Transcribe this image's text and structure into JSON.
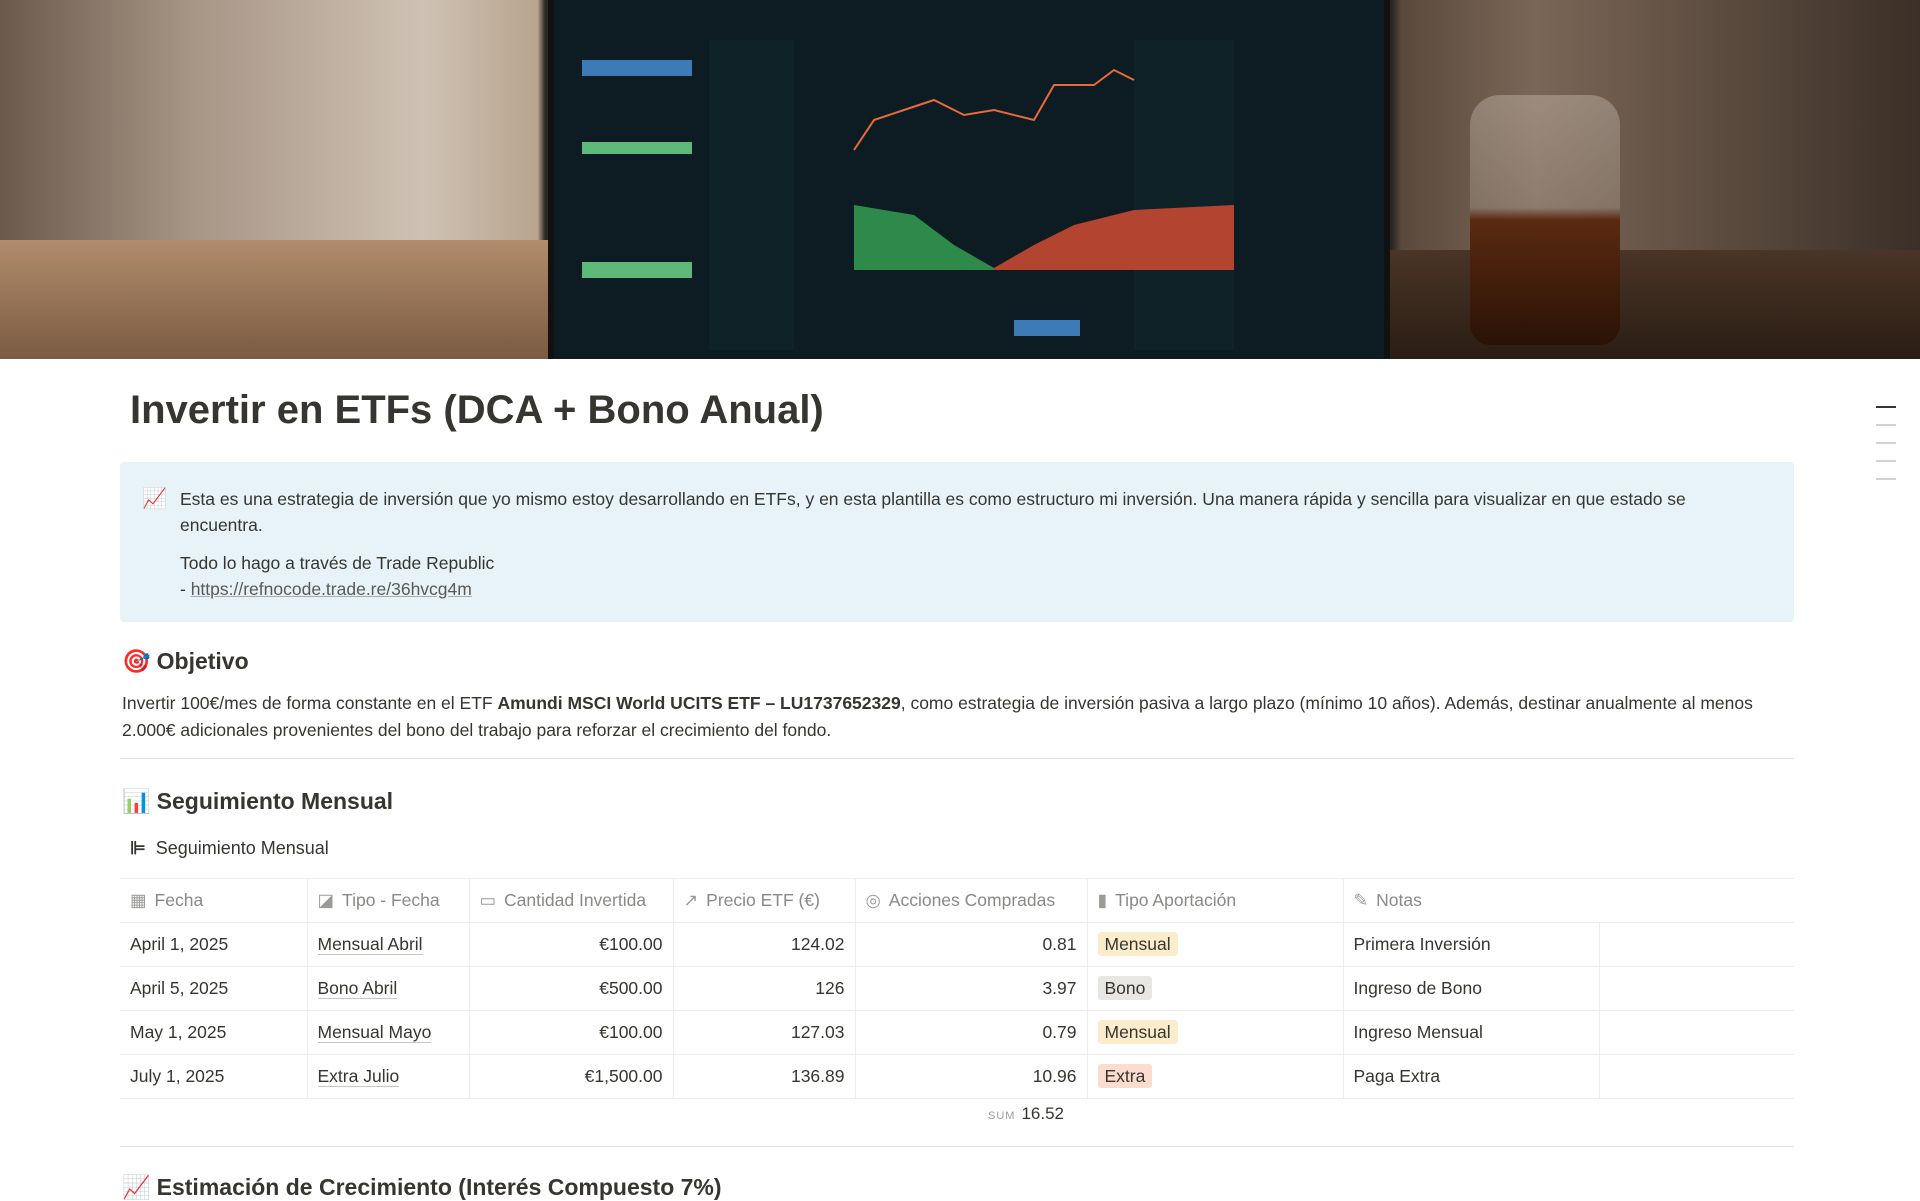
{
  "page": {
    "title": "Invertir en ETFs (DCA + Bono Anual)"
  },
  "callout": {
    "icon": "chart-increasing-icon",
    "text": "Esta es una estrategia de inversión que yo mismo estoy desarrollando en ETFs, y en esta plantilla es como estructuro mi inversión. Una manera rápida y sencilla para visualizar en que estado se encuentra.",
    "line2": "Todo lo hago a través de Trade Republic",
    "dash": "- ",
    "link": "https://refnocode.trade.re/36hvcg4m"
  },
  "objetivo": {
    "heading": "Objetivo",
    "text_before": "Invertir 100€/mes de forma constante en el ETF ",
    "bold": "Amundi MSCI World UCITS ETF – LU1737652329",
    "text_after": ", como estrategia de inversión pasiva a largo plazo (mínimo 10 años). Además, destinar anualmente al menos 2.000€ adicionales provenientes del bono del trabajo para reforzar el crecimiento del fondo."
  },
  "seguimiento": {
    "heading": "Seguimiento Mensual",
    "db_title": "Seguimiento Mensual",
    "columns": [
      "Fecha",
      "Tipo - Fecha",
      "Cantidad Invertida",
      "Precio ETF (€)",
      "Acciones Compradas",
      "Tipo Aportación",
      "Notas"
    ],
    "rows": [
      {
        "fecha": "April 1, 2025",
        "tipo": "Mensual Abril",
        "cantidad": "€100.00",
        "precio": "124.02",
        "acciones": "0.81",
        "aportacion": "Mensual",
        "notas": "Primera Inversión"
      },
      {
        "fecha": "April 5, 2025",
        "tipo": "Bono Abril",
        "cantidad": "€500.00",
        "precio": "126",
        "acciones": "3.97",
        "aportacion": "Bono",
        "notas": "Ingreso de Bono"
      },
      {
        "fecha": "May 1, 2025",
        "tipo": "Mensual Mayo",
        "cantidad": "€100.00",
        "precio": "127.03",
        "acciones": "0.79",
        "aportacion": "Mensual",
        "notas": "Ingreso Mensual"
      },
      {
        "fecha": "July 1, 2025",
        "tipo": "Extra Julio",
        "cantidad": "€1,500.00",
        "precio": "136.89",
        "acciones": "10.96",
        "aportacion": "Extra",
        "notas": "Paga Extra"
      }
    ],
    "sum_label": "SUM",
    "sum_value": "16.52"
  },
  "tag_colors": {
    "Mensual": "#fbeccb",
    "Bono": "#e8e7e4",
    "Extra": "#fbdccf"
  },
  "estimacion": {
    "heading": "Estimación de Crecimiento (Interés Compuesto 7%)"
  }
}
